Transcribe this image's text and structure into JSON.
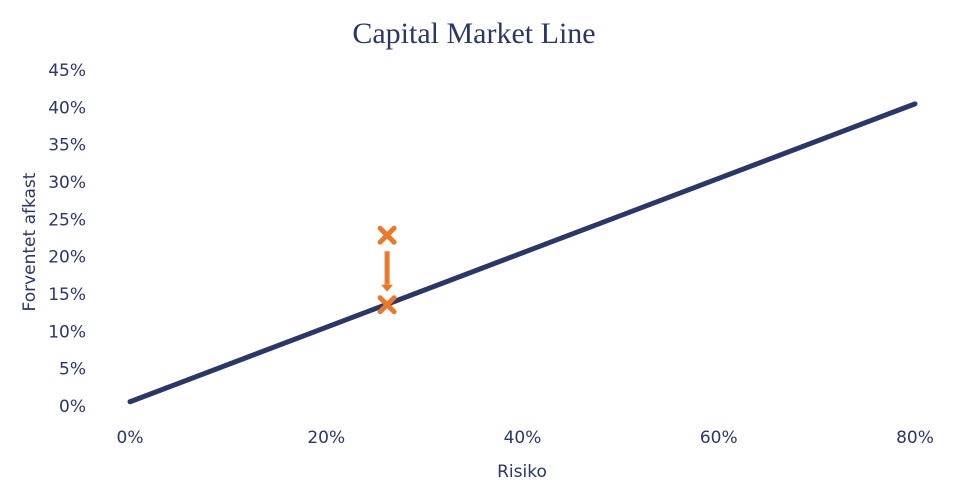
{
  "chart_data": {
    "type": "line",
    "title": "Capital Market Line",
    "x_label": "Risiko",
    "y_label": "Forventet afkast",
    "x": [
      0,
      80
    ],
    "series": [
      {
        "name": "Capital Market Line",
        "color": "#2b3766",
        "values": [
          0.7,
          40.6
        ]
      }
    ],
    "points": {
      "x": [
        26.2,
        26.2
      ],
      "values": [
        23.0,
        13.7
      ],
      "color": "#e8792f"
    },
    "xlim": [
      0,
      80
    ],
    "xticks": [
      {
        "value": 0,
        "label": "0%"
      },
      {
        "value": 20,
        "label": "20%"
      },
      {
        "value": 40,
        "label": "40%"
      },
      {
        "value": 60,
        "label": "60%"
      },
      {
        "value": 80,
        "label": "80%"
      }
    ],
    "ylim": [
      0,
      45
    ],
    "yticks": [
      {
        "value": 0,
        "label": "0%"
      },
      {
        "value": 5,
        "label": "5%"
      },
      {
        "value": 10,
        "label": "10%"
      },
      {
        "value": 15,
        "label": "15%"
      },
      {
        "value": 20,
        "label": "20%"
      },
      {
        "value": 25,
        "label": "25%"
      },
      {
        "value": 30,
        "label": "30%"
      },
      {
        "value": 35,
        "label": "35%"
      },
      {
        "value": 40,
        "label": "40%"
      },
      {
        "value": 45,
        "label": "45%"
      }
    ]
  }
}
